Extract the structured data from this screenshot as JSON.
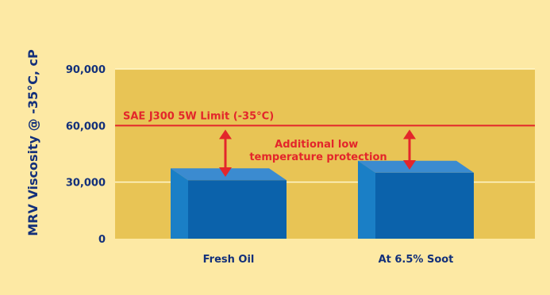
{
  "chart_data": {
    "type": "bar",
    "categories": [
      "Fresh Oil",
      "At 6.5% Soot"
    ],
    "values": [
      31000,
      35000
    ],
    "title": "",
    "xlabel": "",
    "ylabel": "MRV Viscosity @ -35°C, cP",
    "ylim": [
      0,
      90000
    ],
    "yticks": [
      "0",
      "30,000",
      "60,000",
      "90,000"
    ],
    "ytick_values": [
      0,
      30000,
      60000,
      90000
    ],
    "grid": true,
    "reference_line": {
      "value": 60000,
      "label": "SAE J300 5W Limit (-35°C)",
      "color": "#e3262b"
    },
    "annotation": {
      "lines": [
        "Additional low",
        "temperature protection"
      ]
    },
    "colors": {
      "page_background": "#fde9a4",
      "plot_background": "#e8c455",
      "bar_front": "#0b62ab",
      "bar_top": "#3b8bd0",
      "bar_side": "#1a7fc6",
      "text": "#13307a",
      "accent": "#e3262b"
    }
  }
}
